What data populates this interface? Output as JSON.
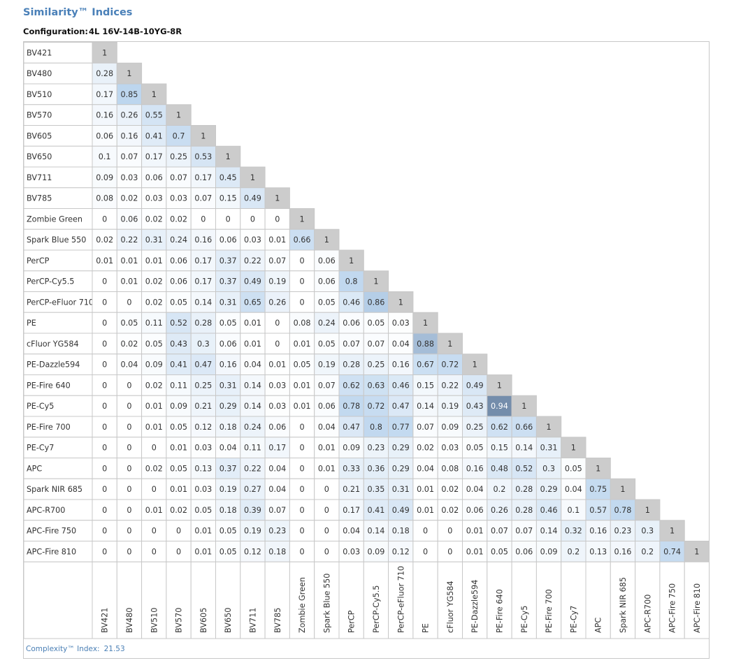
{
  "header": {
    "title": "Similarity™ Indices",
    "configuration_label": "Configuration:",
    "configuration_value": "4L 16V-14B-10YG-8R"
  },
  "footer": {
    "complexity_label": "Complexity™ Index:",
    "complexity_value": "21.53"
  },
  "colors": {
    "diagonal": "#cccccc",
    "low": "#ffffff",
    "mid": "#bdd6ee",
    "high": "#5c7494",
    "grid": "#c8c8c8"
  },
  "chart_data": {
    "type": "heatmap",
    "title": "Similarity™ Indices",
    "labels": [
      "BV421",
      "BV480",
      "BV510",
      "BV570",
      "BV605",
      "BV650",
      "BV711",
      "BV785",
      "Zombie Green",
      "Spark Blue 550",
      "PerCP",
      "PerCP-Cy5.5",
      "PerCP-eFluor 710",
      "PE",
      "cFluor YG584",
      "PE-Dazzle594",
      "PE-Fire 640",
      "PE-Cy5",
      "PE-Fire 700",
      "PE-Cy7",
      "APC",
      "Spark NIR 685",
      "APC-R700",
      "APC-Fire 750",
      "APC-Fire 810"
    ],
    "values": [
      [
        1
      ],
      [
        0.28,
        1
      ],
      [
        0.17,
        0.85,
        1
      ],
      [
        0.16,
        0.26,
        0.55,
        1
      ],
      [
        0.06,
        0.16,
        0.41,
        0.7,
        1
      ],
      [
        0.1,
        0.07,
        0.17,
        0.25,
        0.53,
        1
      ],
      [
        0.09,
        0.03,
        0.06,
        0.07,
        0.17,
        0.45,
        1
      ],
      [
        0.08,
        0.02,
        0.03,
        0.03,
        0.07,
        0.15,
        0.49,
        1
      ],
      [
        0,
        0.06,
        0.02,
        0.02,
        0,
        0,
        0,
        0,
        1
      ],
      [
        0.02,
        0.22,
        0.31,
        0.24,
        0.16,
        0.06,
        0.03,
        0.01,
        0.66,
        1
      ],
      [
        0.01,
        0.01,
        0.01,
        0.06,
        0.17,
        0.37,
        0.22,
        0.07,
        0,
        0.06,
        1
      ],
      [
        0,
        0.01,
        0.02,
        0.06,
        0.17,
        0.37,
        0.49,
        0.19,
        0,
        0.06,
        0.8,
        1
      ],
      [
        0,
        0,
        0.02,
        0.05,
        0.14,
        0.31,
        0.65,
        0.26,
        0,
        0.05,
        0.46,
        0.86,
        1
      ],
      [
        0,
        0.05,
        0.11,
        0.52,
        0.28,
        0.05,
        0.01,
        0,
        0.08,
        0.24,
        0.06,
        0.05,
        0.03,
        1
      ],
      [
        0,
        0.02,
        0.05,
        0.43,
        0.3,
        0.06,
        0.01,
        0,
        0.01,
        0.05,
        0.07,
        0.07,
        0.04,
        0.88,
        1
      ],
      [
        0,
        0.04,
        0.09,
        0.41,
        0.47,
        0.16,
        0.04,
        0.01,
        0.05,
        0.19,
        0.28,
        0.25,
        0.16,
        0.67,
        0.72,
        1
      ],
      [
        0,
        0,
        0.02,
        0.11,
        0.25,
        0.31,
        0.14,
        0.03,
        0.01,
        0.07,
        0.62,
        0.63,
        0.46,
        0.15,
        0.22,
        0.49,
        1
      ],
      [
        0,
        0,
        0.01,
        0.09,
        0.21,
        0.29,
        0.14,
        0.03,
        0.01,
        0.06,
        0.78,
        0.72,
        0.47,
        0.14,
        0.19,
        0.43,
        0.94,
        1
      ],
      [
        0,
        0,
        0.01,
        0.05,
        0.12,
        0.18,
        0.24,
        0.06,
        0,
        0.04,
        0.47,
        0.8,
        0.77,
        0.07,
        0.09,
        0.25,
        0.62,
        0.66,
        1
      ],
      [
        0,
        0,
        0,
        0.01,
        0.03,
        0.04,
        0.11,
        0.17,
        0,
        0.01,
        0.09,
        0.23,
        0.29,
        0.02,
        0.03,
        0.05,
        0.15,
        0.14,
        0.31,
        1
      ],
      [
        0,
        0,
        0.02,
        0.05,
        0.13,
        0.37,
        0.22,
        0.04,
        0,
        0.01,
        0.33,
        0.36,
        0.29,
        0.04,
        0.08,
        0.16,
        0.48,
        0.52,
        0.3,
        0.05,
        1
      ],
      [
        0,
        0,
        0,
        0.01,
        0.03,
        0.19,
        0.27,
        0.04,
        0,
        0,
        0.21,
        0.35,
        0.31,
        0.01,
        0.02,
        0.04,
        0.2,
        0.28,
        0.29,
        0.04,
        0.75,
        1
      ],
      [
        0,
        0,
        0.01,
        0.02,
        0.05,
        0.18,
        0.39,
        0.07,
        0,
        0,
        0.17,
        0.41,
        0.49,
        0.01,
        0.02,
        0.06,
        0.26,
        0.28,
        0.46,
        0.1,
        0.57,
        0.78,
        1
      ],
      [
        0,
        0,
        0,
        0,
        0.01,
        0.05,
        0.19,
        0.23,
        0,
        0,
        0.04,
        0.14,
        0.18,
        0,
        0,
        0.01,
        0.07,
        0.07,
        0.14,
        0.32,
        0.16,
        0.23,
        0.3,
        1
      ],
      [
        0,
        0,
        0,
        0,
        0.01,
        0.05,
        0.12,
        0.18,
        0,
        0,
        0.03,
        0.09,
        0.12,
        0,
        0,
        0.01,
        0.05,
        0.06,
        0.09,
        0.2,
        0.13,
        0.16,
        0.2,
        0.74,
        1
      ]
    ]
  }
}
